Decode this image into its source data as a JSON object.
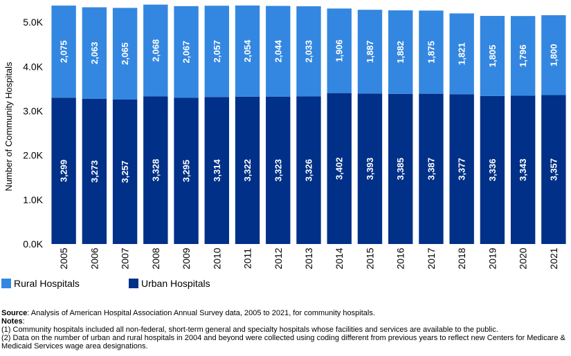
{
  "chart_data": {
    "type": "bar",
    "stacked": true,
    "title": "",
    "xlabel": "",
    "ylabel": "Number of Community Hospitals",
    "ylim": [
      0,
      5500
    ],
    "yticks": [
      0,
      1000,
      2000,
      3000,
      4000,
      5000
    ],
    "ytick_labels": [
      "0.0K",
      "1.0K",
      "2.0K",
      "3.0K",
      "4.0K",
      "5.0K"
    ],
    "categories": [
      "2005",
      "2006",
      "2007",
      "2008",
      "2009",
      "2010",
      "2011",
      "2012",
      "2013",
      "2014",
      "2015",
      "2016",
      "2017",
      "2018",
      "2019",
      "2020",
      "2021"
    ],
    "series": [
      {
        "name": "Urban Hospitals",
        "color": "#003087",
        "values": [
          3299,
          3273,
          3257,
          3328,
          3295,
          3314,
          3322,
          3323,
          3326,
          3402,
          3393,
          3385,
          3387,
          3377,
          3336,
          3343,
          3357
        ],
        "labels": [
          "3,299",
          "3,273",
          "3,257",
          "3,328",
          "3,295",
          "3,314",
          "3,322",
          "3,323",
          "3,326",
          "3,402",
          "3,393",
          "3,385",
          "3,387",
          "3,377",
          "3,336",
          "3,343",
          "3,357"
        ]
      },
      {
        "name": "Rural Hospitals",
        "color": "#3487e0",
        "values": [
          2075,
          2063,
          2065,
          2068,
          2067,
          2057,
          2054,
          2044,
          2033,
          1906,
          1887,
          1882,
          1875,
          1821,
          1805,
          1796,
          1800
        ],
        "labels": [
          "2,075",
          "2,063",
          "2,065",
          "2,068",
          "2,067",
          "2,057",
          "2,054",
          "2,044",
          "2,033",
          "1,906",
          "1,887",
          "1,882",
          "1,875",
          "1,821",
          "1,805",
          "1,796",
          "1,800"
        ]
      }
    ],
    "legend": [
      {
        "label": "Rural Hospitals",
        "color": "#3487e0"
      },
      {
        "label": "Urban Hospitals",
        "color": "#003087"
      }
    ],
    "legend_position": "bottom-left"
  },
  "footer": {
    "source_label": "Source",
    "source_text": ": Analysis of American Hospital Association Annual Survey data, 2005 to 2021, for community hospitals.",
    "notes_label": "Notes",
    "notes_colon": ":",
    "note1": " (1) Community hospitals included  all non-federal, short-term general and specialty hospitals whose facilities and services are available to the public.",
    "note2": " (2)  Data on the number of urban and rural hospitals in 2004 and beyond were collected using coding different from previous years to reflect new Centers for Medicare & Medicaid Services wage area designations."
  }
}
